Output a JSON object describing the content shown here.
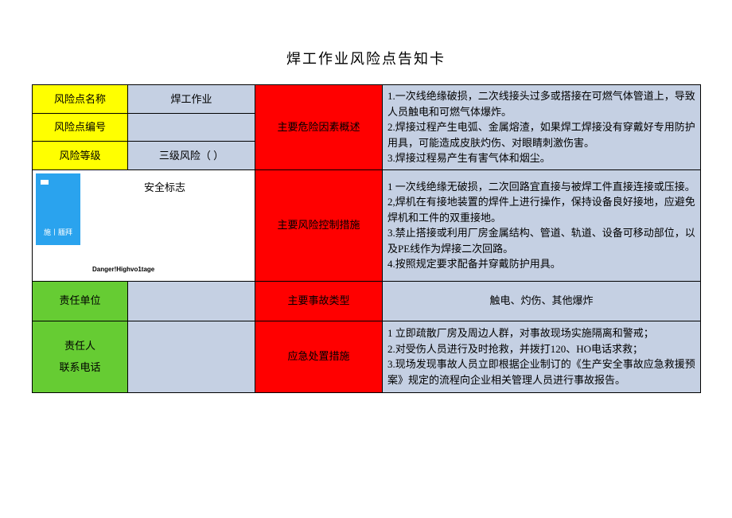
{
  "title": "焊工作业风险点告知卡",
  "labels": {
    "risk_name": "风险点名称",
    "risk_id": "风险点编号",
    "risk_level": "风险等级",
    "hazard_summary": "主要危险因素概述",
    "control_measures": "主要风险控制措施",
    "accident_type": "主要事故类型",
    "emergency": "应急处置措施",
    "safety_sign": "安全标志",
    "responsible_unit": "责任单位",
    "responsible_person": "责任人",
    "contact_phone": "联系电话"
  },
  "values": {
    "risk_name": "焊工作业",
    "risk_id": "",
    "risk_level": "三级风险（      ）",
    "hazard_summary": "1.一次线绝缘破损，二次线接头过多或搭接在可燃气体管道上，导致人员触电和可燃气体爆炸。\n2.焊接过程产生电弧、金属熔渣，如果焊工焊接没有穿戴好专用防护用具，可能造成皮肤灼伤、对眼睛刺激伤害。\n3.焊接过程易产生有害气体和烟尘。",
    "control_measures": "1 一次线绝缘无破损，二次回路宜直接与被焊工件直接连接或压接。\n2,焊机在有接地装置的焊件上进行操作，保持设备良好接地，应避免焊机和工件的双重接地。\n3.禁止搭接或利用厂房金属结构、管道、轨道、设备可移动部位，以及PE线作为焊接二次回路。\n4.按照规定要求配备并穿戴防护用具。",
    "accident_type": "触电、灼伤、其他爆炸",
    "emergency": "1 立即疏散厂房及周边人群，对事故现场实施隔离和警戒；\n2.对受伤人员进行及时抢救，并拨打120、HO电话求救；\n3.现场发现事故人员立即根据企业制订的《生产安全事故应急救援预案》规定的流程向企业相关管理人员进行事故报告。",
    "sign_box_text": "施丨腼拜",
    "danger_text": "Danger!Highvo1tage"
  },
  "colors": {
    "yellow": "#ffff00",
    "blue_light": "#c5d0e3",
    "red": "#ff0000",
    "green": "#66cc33",
    "white": "#ffffff",
    "sign_blue": "#2aa3ee",
    "border": "#000000"
  },
  "fonts": {
    "body_size": 13,
    "title_size": 18,
    "small_size": 9
  }
}
